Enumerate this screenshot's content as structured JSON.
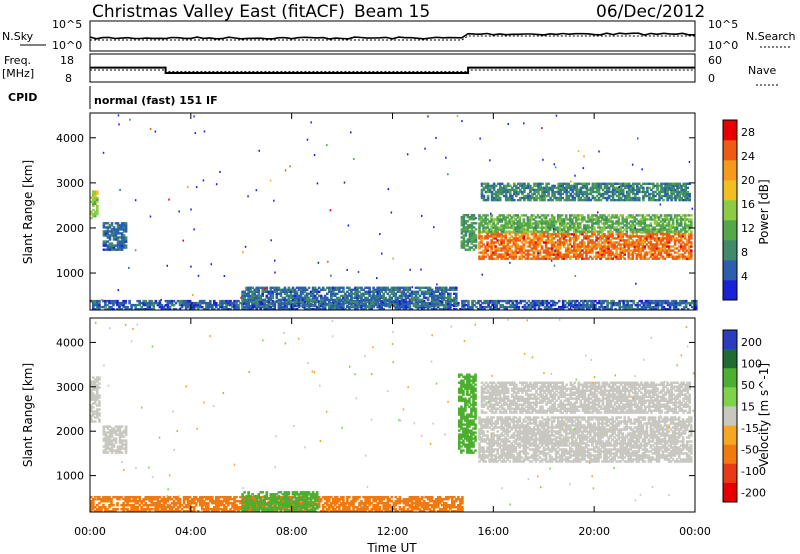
{
  "header": {
    "station": "Christmas Valley East (fitACF)",
    "beam": "Beam 15",
    "date": "06/Dec/2012"
  },
  "noise_panel": {
    "left_label": "N.Sky",
    "left_ticks": [
      "10^5",
      "10^0"
    ],
    "right_label": "N.Search",
    "right_ticks": [
      "10^5",
      "10^0"
    ]
  },
  "freq_panel": {
    "left_label_1": "Freq.",
    "left_label_2": "[MHz]",
    "left_ticks": [
      "18",
      "8"
    ],
    "right_label": "Nave",
    "right_ticks": [
      "60",
      "0"
    ]
  },
  "cpid": {
    "label": "CPID",
    "value": "normal (fast) 151 IF"
  },
  "colors": {
    "velocity_scale": [
      "#2a3dbd",
      "#1f6b31",
      "#4caf2f",
      "#7fd24a",
      "#c8c8c0",
      "#f5a623",
      "#f07a10",
      "#e83a16",
      "#e60000"
    ],
    "power_scale": [
      "#1a22d8",
      "#2b5fae",
      "#3f8a6a",
      "#55a84a",
      "#8ccc44",
      "#f0c020",
      "#f59a1a",
      "#ef5a14",
      "#e80000"
    ]
  },
  "chart_data": [
    {
      "type": "heatmap",
      "name": "power",
      "ylabel": "Slant Range [km]",
      "yticks": [
        1000,
        2000,
        3000,
        4000
      ],
      "ylim": [
        180,
        4550
      ],
      "xlim": [
        0,
        24
      ],
      "colorbar_label": "Power [dB]",
      "colorbar_ticks": [
        4,
        8,
        12,
        16,
        20,
        24,
        28
      ],
      "colorbar_range": [
        0,
        30
      ],
      "features": [
        {
          "t_start": 0.0,
          "t_end": 24.0,
          "range_min": 180,
          "range_max": 400,
          "level": 5
        },
        {
          "t_start": 6.0,
          "t_end": 14.5,
          "range_min": 250,
          "range_max": 700,
          "level": 6
        },
        {
          "t_start": 0.0,
          "t_end": 0.3,
          "range_min": 2200,
          "range_max": 2800,
          "level": 15
        },
        {
          "t_start": 0.5,
          "t_end": 1.4,
          "range_min": 1500,
          "range_max": 2100,
          "level": 6
        },
        {
          "t_start": 14.7,
          "t_end": 15.3,
          "range_min": 1500,
          "range_max": 2300,
          "level": 10
        },
        {
          "t_start": 15.4,
          "t_end": 23.8,
          "range_min": 1300,
          "range_max": 1900,
          "level": 24
        },
        {
          "t_start": 15.4,
          "t_end": 23.8,
          "range_min": 1900,
          "range_max": 2300,
          "level": 12
        },
        {
          "t_start": 15.5,
          "t_end": 23.8,
          "range_min": 2600,
          "range_max": 3000,
          "level": 8
        }
      ]
    },
    {
      "type": "heatmap",
      "name": "velocity",
      "ylabel": "Slant Range [km]",
      "yticks": [
        1000,
        2000,
        3000,
        4000
      ],
      "ylim": [
        180,
        4550
      ],
      "xlim": [
        0,
        24
      ],
      "xticks": [
        "00:00",
        "04:00",
        "08:00",
        "12:00",
        "16:00",
        "20:00",
        "00:00"
      ],
      "xlabel": "Time UT",
      "colorbar_label": "Velocity [m s^-1]",
      "colorbar_ticks": [
        200,
        100,
        50,
        15,
        -15,
        -50,
        -100,
        -200
      ],
      "features": [
        {
          "t_start": 0.0,
          "t_end": 14.8,
          "range_min": 180,
          "range_max": 500,
          "velocity": -60
        },
        {
          "t_start": 6.0,
          "t_end": 9.0,
          "range_min": 200,
          "range_max": 650,
          "velocity": 40
        },
        {
          "t_start": 0.0,
          "t_end": 0.4,
          "range_min": 2200,
          "range_max": 3200,
          "velocity": 0
        },
        {
          "t_start": 0.5,
          "t_end": 1.4,
          "range_min": 1500,
          "range_max": 2100,
          "velocity": 0
        },
        {
          "t_start": 14.6,
          "t_end": 15.3,
          "range_min": 1500,
          "range_max": 3300,
          "velocity": 40
        },
        {
          "t_start": 15.4,
          "t_end": 23.8,
          "range_min": 1300,
          "range_max": 2300,
          "velocity": 0
        },
        {
          "t_start": 15.5,
          "t_end": 23.8,
          "range_min": 2400,
          "range_max": 3100,
          "velocity": 0
        }
      ]
    }
  ]
}
